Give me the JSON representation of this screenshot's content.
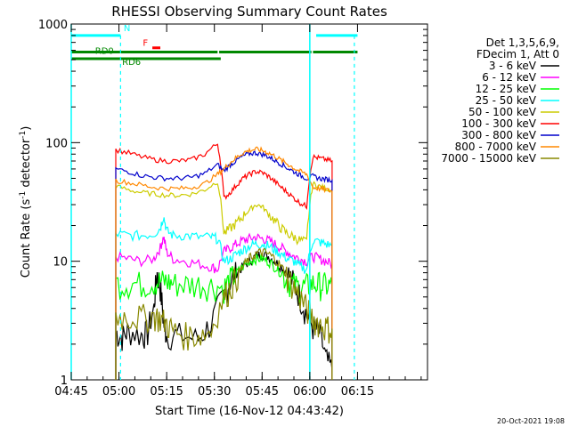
{
  "chart_data": {
    "type": "line",
    "title": "RHESSI Observing Summary Count Rates",
    "xlabel": "Start Time (16-Nov-12 04:43:42)",
    "ylabel_main": "Count Rate (s",
    "ylabel_sup1": "-1",
    "ylabel_mid": " detector",
    "ylabel_sup2": "-1",
    "ylabel_end": ")",
    "y_scale": "log",
    "ylim": [
      1,
      1000
    ],
    "xlim_minutes": [
      -14,
      98
    ],
    "x_ticks": [
      {
        "m": -14,
        "label": "04:45"
      },
      {
        "m": 1,
        "label": "05:00"
      },
      {
        "m": 16,
        "label": "05:15"
      },
      {
        "m": 31,
        "label": "05:30"
      },
      {
        "m": 46,
        "label": "05:45"
      },
      {
        "m": 61,
        "label": "06:00"
      },
      {
        "m": 76,
        "label": "06:15"
      }
    ],
    "y_ticks": [
      {
        "v": 1,
        "label": "1"
      },
      {
        "v": 10,
        "label": "10"
      },
      {
        "v": 100,
        "label": "100"
      },
      {
        "v": 1000,
        "label": "1000"
      }
    ],
    "legend": {
      "placement": "right",
      "header1": "Det 1,3,5,6,9,",
      "header2": "FDecim 1, Att 0"
    },
    "series": [
      {
        "name": "3 - 6 keV",
        "color": "#000000",
        "x": [
          0,
          2,
          4,
          8,
          10,
          12,
          13,
          14,
          15,
          16,
          20,
          26,
          30,
          34,
          36,
          38,
          40,
          42,
          44,
          46,
          48,
          50,
          52,
          54,
          56,
          58,
          60,
          62,
          64,
          66,
          68
        ],
        "y": [
          2.5,
          2.3,
          2.6,
          2.4,
          2.5,
          4,
          8,
          6,
          3,
          2.4,
          2.4,
          2.2,
          3,
          5,
          7,
          8,
          9,
          10,
          11,
          11.5,
          11,
          10,
          9,
          8,
          6.5,
          5,
          3.5,
          2.8,
          2.5,
          1.5,
          1.2
        ]
      },
      {
        "name": "6 - 12 keV",
        "color": "#ff00ff",
        "x": [
          0,
          4,
          8,
          12,
          14,
          15,
          16,
          18,
          22,
          26,
          30,
          32,
          34,
          36,
          38,
          40,
          42,
          44,
          46,
          48,
          50,
          52,
          54,
          56,
          58,
          60,
          62,
          64,
          66,
          68
        ],
        "y": [
          11,
          10.5,
          10,
          10.5,
          13,
          16,
          12,
          10.5,
          10,
          9.5,
          9,
          8.5,
          12,
          13,
          14,
          15,
          15.5,
          16,
          15.5,
          15,
          14,
          13,
          12,
          11,
          10.5,
          10,
          11,
          10.5,
          10,
          9.5
        ]
      },
      {
        "name": "12 - 25 keV",
        "color": "#00ff00",
        "x": [
          0,
          4,
          8,
          12,
          14,
          16,
          18,
          22,
          26,
          30,
          34,
          36,
          38,
          40,
          42,
          44,
          46,
          48,
          50,
          52,
          54,
          56,
          58,
          60,
          62,
          64,
          66,
          68
        ],
        "y": [
          6.5,
          6.5,
          6.5,
          6.7,
          6.8,
          6.8,
          6.5,
          6.4,
          6.4,
          6.3,
          6,
          7,
          8,
          9,
          10,
          10.5,
          10.5,
          10,
          9,
          8,
          7,
          6.3,
          6,
          6.2,
          6.5,
          6.4,
          6.3,
          6.2
        ]
      },
      {
        "name": "25 - 50 keV",
        "color": "#00ffff",
        "x": [
          0,
          4,
          8,
          12,
          14,
          15,
          16,
          18,
          22,
          26,
          30,
          32,
          34,
          36,
          38,
          40,
          42,
          44,
          46,
          48,
          50,
          52,
          54,
          56,
          58,
          60,
          62,
          64,
          66,
          68
        ],
        "y": [
          17,
          16.5,
          16.5,
          17,
          19,
          24,
          18,
          16.5,
          16.5,
          16,
          16,
          15.5,
          10,
          10.5,
          11.5,
          12.5,
          13.5,
          14,
          14,
          13.5,
          12.5,
          11.5,
          10.5,
          10,
          9,
          8.5,
          15,
          14.5,
          14,
          13.5
        ]
      },
      {
        "name": "50 - 100 keV",
        "color": "#cccc00",
        "x": [
          0,
          4,
          8,
          12,
          16,
          20,
          24,
          28,
          32,
          34,
          36,
          38,
          40,
          42,
          44,
          46,
          48,
          50,
          52,
          54,
          56,
          58,
          60,
          62,
          64,
          66,
          68
        ],
        "y": [
          43,
          40,
          38,
          37,
          36,
          36,
          37,
          40,
          47,
          17,
          19,
          21,
          24,
          27,
          30,
          29,
          25,
          22,
          19,
          17,
          16,
          15,
          14.5,
          45,
          43,
          41,
          40
        ]
      },
      {
        "name": "100 - 300 keV",
        "color": "#ff0000",
        "x": [
          0,
          4,
          8,
          12,
          16,
          20,
          24,
          28,
          32,
          34,
          36,
          38,
          40,
          42,
          44,
          46,
          48,
          50,
          52,
          54,
          56,
          58,
          60,
          62,
          64,
          66,
          68
        ],
        "y": [
          87,
          82,
          76,
          72,
          70,
          70,
          72,
          80,
          98,
          34,
          38,
          44,
          50,
          54,
          57,
          56,
          52,
          47,
          42,
          38,
          34,
          31,
          29,
          76,
          74,
          72,
          70
        ]
      },
      {
        "name": "300 - 800 keV",
        "color": "#0000cc",
        "x": [
          0,
          4,
          8,
          12,
          16,
          20,
          24,
          28,
          32,
          34,
          36,
          38,
          40,
          42,
          44,
          46,
          48,
          50,
          52,
          54,
          56,
          58,
          60,
          62,
          64,
          66,
          68
        ],
        "y": [
          60,
          57,
          53,
          51,
          50,
          50,
          51,
          55,
          65,
          58,
          65,
          71,
          77,
          81,
          82,
          80,
          76,
          71,
          66,
          61,
          57,
          53,
          50,
          52,
          50,
          49,
          48
        ]
      },
      {
        "name": "800 - 7000 keV",
        "color": "#ff8800",
        "x": [
          0,
          4,
          8,
          12,
          16,
          20,
          24,
          28,
          32,
          34,
          36,
          38,
          40,
          42,
          44,
          46,
          48,
          50,
          52,
          54,
          56,
          58,
          60,
          62,
          64,
          66,
          68
        ],
        "y": [
          48,
          46,
          44,
          42,
          41,
          41,
          42,
          45,
          54,
          60,
          68,
          75,
          82,
          86,
          88,
          86,
          82,
          77,
          71,
          66,
          61,
          57,
          54,
          42,
          41,
          40,
          39
        ]
      },
      {
        "name": "7000 - 15000 keV",
        "color": "#888800",
        "x": [
          0,
          4,
          8,
          12,
          14,
          16,
          18,
          22,
          26,
          30,
          34,
          36,
          38,
          40,
          42,
          44,
          46,
          48,
          50,
          52,
          54,
          56,
          58,
          60,
          62,
          64,
          66,
          68
        ],
        "y": [
          3.5,
          3.4,
          3.4,
          3.5,
          3.3,
          3,
          2.6,
          2.4,
          2.4,
          2.6,
          5,
          6,
          7.5,
          9,
          10.5,
          11.5,
          12,
          11.5,
          10.5,
          9,
          7.5,
          6,
          5,
          4,
          3.3,
          3,
          2.8,
          2.7
        ]
      }
    ],
    "annotations": [
      {
        "text": "N",
        "color": "#00ffff"
      },
      {
        "text": "F",
        "color": "#ff0000"
      },
      {
        "text": "RD0",
        "color": "#008800"
      },
      {
        "text": "RD6",
        "color": "#008800"
      }
    ],
    "status_bars": {
      "night": {
        "color": "#00ffff",
        "segments": [
          [
            -14,
            1.5
          ],
          [
            63,
            76
          ]
        ],
        "level": 800
      },
      "flare": {
        "color": "#ff0000",
        "segments": [
          [
            11.5,
            14
          ]
        ],
        "level": 630
      },
      "rd0": {
        "color": "#008800",
        "segments": [
          [
            -14,
            32
          ],
          [
            32.5,
            61.5
          ],
          [
            62,
            76
          ]
        ],
        "level": 580
      },
      "rd6": {
        "color": "#008800",
        "segments": [
          [
            -14,
            33
          ]
        ],
        "level": 510
      }
    },
    "night_boundaries": {
      "color": "#00ffff",
      "solid_at": [
        -14,
        61
      ],
      "dashed_at": [
        1.5,
        75
      ]
    },
    "timestamp": "20-Oct-2021 19:08"
  }
}
